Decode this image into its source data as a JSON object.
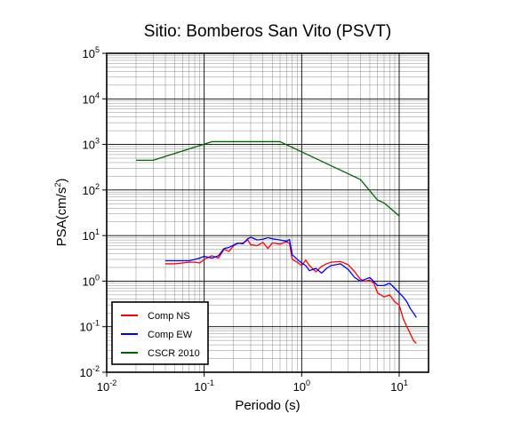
{
  "chart_data": {
    "type": "line",
    "title": "Sitio: Bomberos San Vito (PSVT)",
    "xlabel": "Periodo (s)",
    "ylabel_main": "PSA(cm/s",
    "ylabel_sup": "2",
    "ylabel_close": ")",
    "x_scale": "log",
    "y_scale": "log",
    "xlim": [
      0.01,
      20
    ],
    "ylim": [
      0.01,
      100000
    ],
    "grid": true,
    "legend_position": "bottom-left",
    "x_ticks": [
      {
        "base": "10",
        "exp": "-2",
        "value": 0.01
      },
      {
        "base": "10",
        "exp": "-1",
        "value": 0.1
      },
      {
        "base": "10",
        "exp": "0",
        "value": 1
      },
      {
        "base": "10",
        "exp": "1",
        "value": 10
      }
    ],
    "y_ticks": [
      {
        "base": "10",
        "exp": "-2",
        "value": 0.01
      },
      {
        "base": "10",
        "exp": "-1",
        "value": 0.1
      },
      {
        "base": "10",
        "exp": "0",
        "value": 1
      },
      {
        "base": "10",
        "exp": "1",
        "value": 10
      },
      {
        "base": "10",
        "exp": "2",
        "value": 100
      },
      {
        "base": "10",
        "exp": "3",
        "value": 1000
      },
      {
        "base": "10",
        "exp": "4",
        "value": 10000
      },
      {
        "base": "10",
        "exp": "5",
        "value": 100000
      }
    ],
    "series": [
      {
        "name": "Comp NS",
        "color": "#ff0000",
        "points": [
          [
            0.04,
            2.4
          ],
          [
            0.05,
            2.4
          ],
          [
            0.06,
            2.5
          ],
          [
            0.07,
            2.6
          ],
          [
            0.08,
            2.6
          ],
          [
            0.09,
            2.5
          ],
          [
            0.1,
            3.0
          ],
          [
            0.12,
            3.6
          ],
          [
            0.14,
            3.2
          ],
          [
            0.16,
            5.0
          ],
          [
            0.18,
            4.5
          ],
          [
            0.2,
            6.0
          ],
          [
            0.22,
            6.7
          ],
          [
            0.25,
            6.9
          ],
          [
            0.28,
            8.0
          ],
          [
            0.3,
            6.3
          ],
          [
            0.35,
            6.0
          ],
          [
            0.4,
            7.1
          ],
          [
            0.45,
            5.2
          ],
          [
            0.5,
            6.9
          ],
          [
            0.6,
            6.5
          ],
          [
            0.7,
            7.3
          ],
          [
            0.75,
            6.8
          ],
          [
            0.8,
            3.0
          ],
          [
            0.9,
            2.6
          ],
          [
            1.0,
            2.2
          ],
          [
            1.1,
            2.9
          ],
          [
            1.2,
            2.2
          ],
          [
            1.4,
            1.6
          ],
          [
            1.6,
            2.1
          ],
          [
            1.8,
            2.4
          ],
          [
            2.0,
            2.6
          ],
          [
            2.5,
            2.7
          ],
          [
            3.0,
            2.3
          ],
          [
            3.5,
            1.6
          ],
          [
            4.0,
            1.1
          ],
          [
            4.5,
            1.0
          ],
          [
            5.0,
            1.05
          ],
          [
            5.5,
            0.9
          ],
          [
            6.0,
            0.55
          ],
          [
            7.0,
            0.45
          ],
          [
            8.0,
            0.5
          ],
          [
            9.0,
            0.35
          ],
          [
            10.0,
            0.3
          ],
          [
            11.0,
            0.15
          ],
          [
            12.0,
            0.1
          ],
          [
            13.0,
            0.07
          ],
          [
            14.0,
            0.05
          ],
          [
            15.0,
            0.043
          ]
        ]
      },
      {
        "name": "Comp EW",
        "color": "#0000ff",
        "points": [
          [
            0.04,
            2.8
          ],
          [
            0.05,
            2.8
          ],
          [
            0.06,
            2.8
          ],
          [
            0.07,
            2.8
          ],
          [
            0.08,
            3.0
          ],
          [
            0.09,
            3.2
          ],
          [
            0.1,
            3.5
          ],
          [
            0.12,
            3.2
          ],
          [
            0.14,
            3.6
          ],
          [
            0.16,
            5.2
          ],
          [
            0.18,
            5.5
          ],
          [
            0.2,
            6.2
          ],
          [
            0.22,
            6.8
          ],
          [
            0.25,
            6.6
          ],
          [
            0.28,
            8.5
          ],
          [
            0.3,
            9.2
          ],
          [
            0.35,
            8.0
          ],
          [
            0.4,
            8.3
          ],
          [
            0.45,
            9.0
          ],
          [
            0.5,
            8.5
          ],
          [
            0.6,
            8.0
          ],
          [
            0.7,
            7.5
          ],
          [
            0.75,
            8.2
          ],
          [
            0.8,
            3.8
          ],
          [
            0.9,
            3.0
          ],
          [
            1.0,
            2.5
          ],
          [
            1.1,
            2.2
          ],
          [
            1.2,
            1.7
          ],
          [
            1.4,
            1.9
          ],
          [
            1.6,
            1.5
          ],
          [
            1.8,
            1.9
          ],
          [
            2.0,
            2.2
          ],
          [
            2.5,
            2.4
          ],
          [
            3.0,
            1.8
          ],
          [
            3.5,
            1.2
          ],
          [
            4.0,
            1.0
          ],
          [
            4.5,
            1.1
          ],
          [
            5.0,
            1.2
          ],
          [
            6.0,
            0.8
          ],
          [
            7.0,
            0.8
          ],
          [
            8.0,
            0.9
          ],
          [
            9.0,
            0.7
          ],
          [
            10.0,
            0.55
          ],
          [
            11.0,
            0.45
          ],
          [
            12.0,
            0.35
          ],
          [
            13.0,
            0.25
          ],
          [
            14.0,
            0.2
          ],
          [
            15.0,
            0.16
          ]
        ]
      },
      {
        "name": "CSCR 2010",
        "color": "#006400",
        "points": [
          [
            0.02,
            450
          ],
          [
            0.03,
            450
          ],
          [
            0.12,
            1150
          ],
          [
            0.6,
            1150
          ],
          [
            4.0,
            170
          ],
          [
            6.0,
            60
          ],
          [
            7.0,
            52
          ],
          [
            10.0,
            27
          ]
        ]
      }
    ]
  }
}
